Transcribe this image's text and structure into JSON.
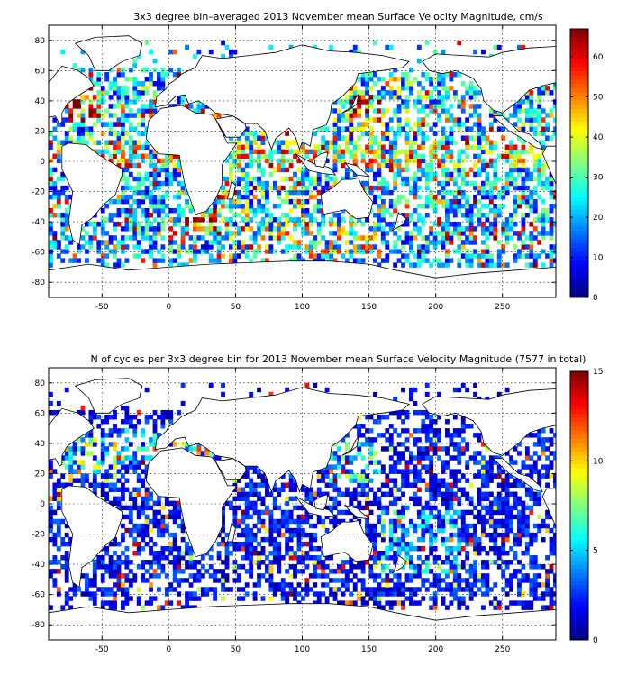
{
  "chart_data": [
    {
      "type": "heatmap",
      "title": "3x3 degree bin–averaged 2013 November mean Surface Velocity Magnitude, cm/s",
      "xlabel": "",
      "ylabel": "",
      "xlim": [
        -90,
        290
      ],
      "ylim": [
        -90,
        90
      ],
      "xticks": [
        -50,
        0,
        50,
        100,
        150,
        200,
        250
      ],
      "yticks": [
        -80,
        -60,
        -40,
        -20,
        0,
        20,
        40,
        60,
        80
      ],
      "bin_size_deg": 3,
      "colormap": "jet",
      "colorbar": {
        "range": [
          0,
          67
        ],
        "ticks": [
          0,
          10,
          20,
          30,
          40,
          50,
          60
        ],
        "placement": "right"
      },
      "grid": true,
      "regions": [
        {
          "x0": -80,
          "x1": -10,
          "y0": 5,
          "y1": 55,
          "level": 22
        },
        {
          "x0": -75,
          "x1": -55,
          "y0": 25,
          "y1": 45,
          "level": 55
        },
        {
          "x0": -90,
          "x1": -70,
          "y0": -60,
          "y1": 5,
          "level": 18
        },
        {
          "x0": -40,
          "x1": 20,
          "y0": -60,
          "y1": 0,
          "level": 20
        },
        {
          "x0": 10,
          "x1": 40,
          "y0": -50,
          "y1": -30,
          "level": 45
        },
        {
          "x0": 40,
          "x1": 110,
          "y0": -60,
          "y1": 20,
          "level": 24
        },
        {
          "x0": 90,
          "x1": 160,
          "y0": -65,
          "y1": -40,
          "level": 30
        },
        {
          "x0": 120,
          "x1": 200,
          "y0": 0,
          "y1": 55,
          "level": 25
        },
        {
          "x0": 135,
          "x1": 160,
          "y0": 25,
          "y1": 45,
          "level": 50
        },
        {
          "x0": 160,
          "x1": 290,
          "y0": -60,
          "y1": 0,
          "level": 20
        },
        {
          "x0": 200,
          "x1": 290,
          "y0": 0,
          "y1": 55,
          "level": 22
        },
        {
          "x0": -90,
          "x1": 290,
          "y0": -5,
          "y1": 10,
          "level": 35
        }
      ]
    },
    {
      "type": "heatmap",
      "title": "N of cycles per 3x3 degree bin for 2013 November mean Surface Velocity Magnitude (7577 in total)",
      "xlabel": "",
      "ylabel": "",
      "xlim": [
        -90,
        290
      ],
      "ylim": [
        -90,
        90
      ],
      "xticks": [
        -50,
        0,
        50,
        100,
        150,
        200,
        250
      ],
      "yticks": [
        -80,
        -60,
        -40,
        -20,
        0,
        20,
        40,
        60,
        80
      ],
      "bin_size_deg": 3,
      "colormap": "jet",
      "colorbar": {
        "range": [
          0,
          15
        ],
        "ticks": [
          0,
          5,
          10,
          15
        ],
        "placement": "right"
      },
      "grid": true,
      "regions": [
        {
          "x0": -90,
          "x1": 290,
          "y0": -65,
          "y1": 60,
          "level": 2
        },
        {
          "x0": -80,
          "x1": -40,
          "y0": 20,
          "y1": 45,
          "level": 6
        },
        {
          "x0": -40,
          "x1": -10,
          "y0": 25,
          "y1": 50,
          "level": 4
        },
        {
          "x0": 120,
          "x1": 160,
          "y0": 15,
          "y1": 40,
          "level": 5
        },
        {
          "x0": 160,
          "x1": 220,
          "y0": -45,
          "y1": -5,
          "level": 4
        },
        {
          "x0": 0,
          "x1": 40,
          "y0": 30,
          "y1": 45,
          "level": 7
        }
      ]
    }
  ]
}
